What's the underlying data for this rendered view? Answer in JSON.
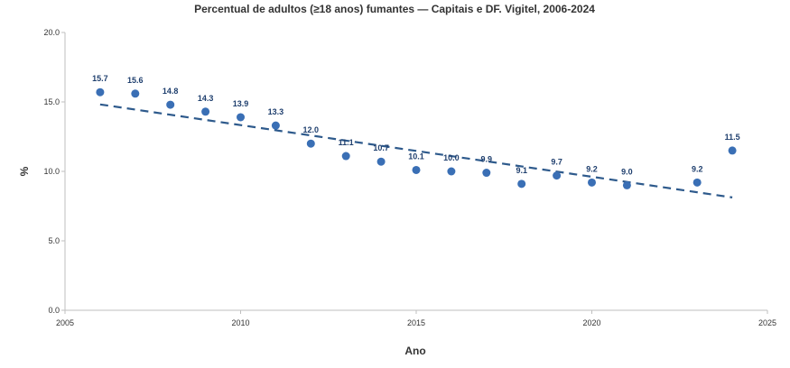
{
  "chart_data": {
    "type": "scatter",
    "title": "Percentual de adultos (≥18 anos) fumantes — Capitais e DF. Vigitel, 2006-2024",
    "xlabel": "Ano",
    "ylabel": "%",
    "xlim": [
      2005,
      2025
    ],
    "ylim": [
      0,
      20
    ],
    "xticks": [
      "2005",
      "2010",
      "2015",
      "2020",
      "2025"
    ],
    "yticks": [
      "0.0",
      "5.0",
      "10.0",
      "15.0",
      "20.0"
    ],
    "grid": false,
    "legend": "none",
    "point_color": "#3a6fb5",
    "trendline": {
      "type": "linear",
      "style": "dashed",
      "color": "#2e5a8c"
    },
    "points": [
      {
        "x": 2006,
        "y": 15.7,
        "label": "15.7"
      },
      {
        "x": 2007,
        "y": 15.6,
        "label": "15.6"
      },
      {
        "x": 2008,
        "y": 14.8,
        "label": "14.8"
      },
      {
        "x": 2009,
        "y": 14.3,
        "label": "14.3"
      },
      {
        "x": 2010,
        "y": 13.9,
        "label": "13.9"
      },
      {
        "x": 2011,
        "y": 13.3,
        "label": "13.3"
      },
      {
        "x": 2012,
        "y": 12.0,
        "label": "12.0"
      },
      {
        "x": 2013,
        "y": 11.1,
        "label": "11.1"
      },
      {
        "x": 2014,
        "y": 10.7,
        "label": "10.7"
      },
      {
        "x": 2015,
        "y": 10.1,
        "label": "10.1"
      },
      {
        "x": 2016,
        "y": 10.0,
        "label": "10.0"
      },
      {
        "x": 2017,
        "y": 9.9,
        "label": "9.9"
      },
      {
        "x": 2018,
        "y": 9.1,
        "label": "9.1"
      },
      {
        "x": 2019,
        "y": 9.7,
        "label": "9.7"
      },
      {
        "x": 2020,
        "y": 9.2,
        "label": "9.2"
      },
      {
        "x": 2021,
        "y": 9.0,
        "label": "9.0"
      },
      {
        "x": 2023,
        "y": 9.2,
        "label": "9.2"
      },
      {
        "x": 2024,
        "y": 11.5,
        "label": "11.5"
      }
    ]
  }
}
